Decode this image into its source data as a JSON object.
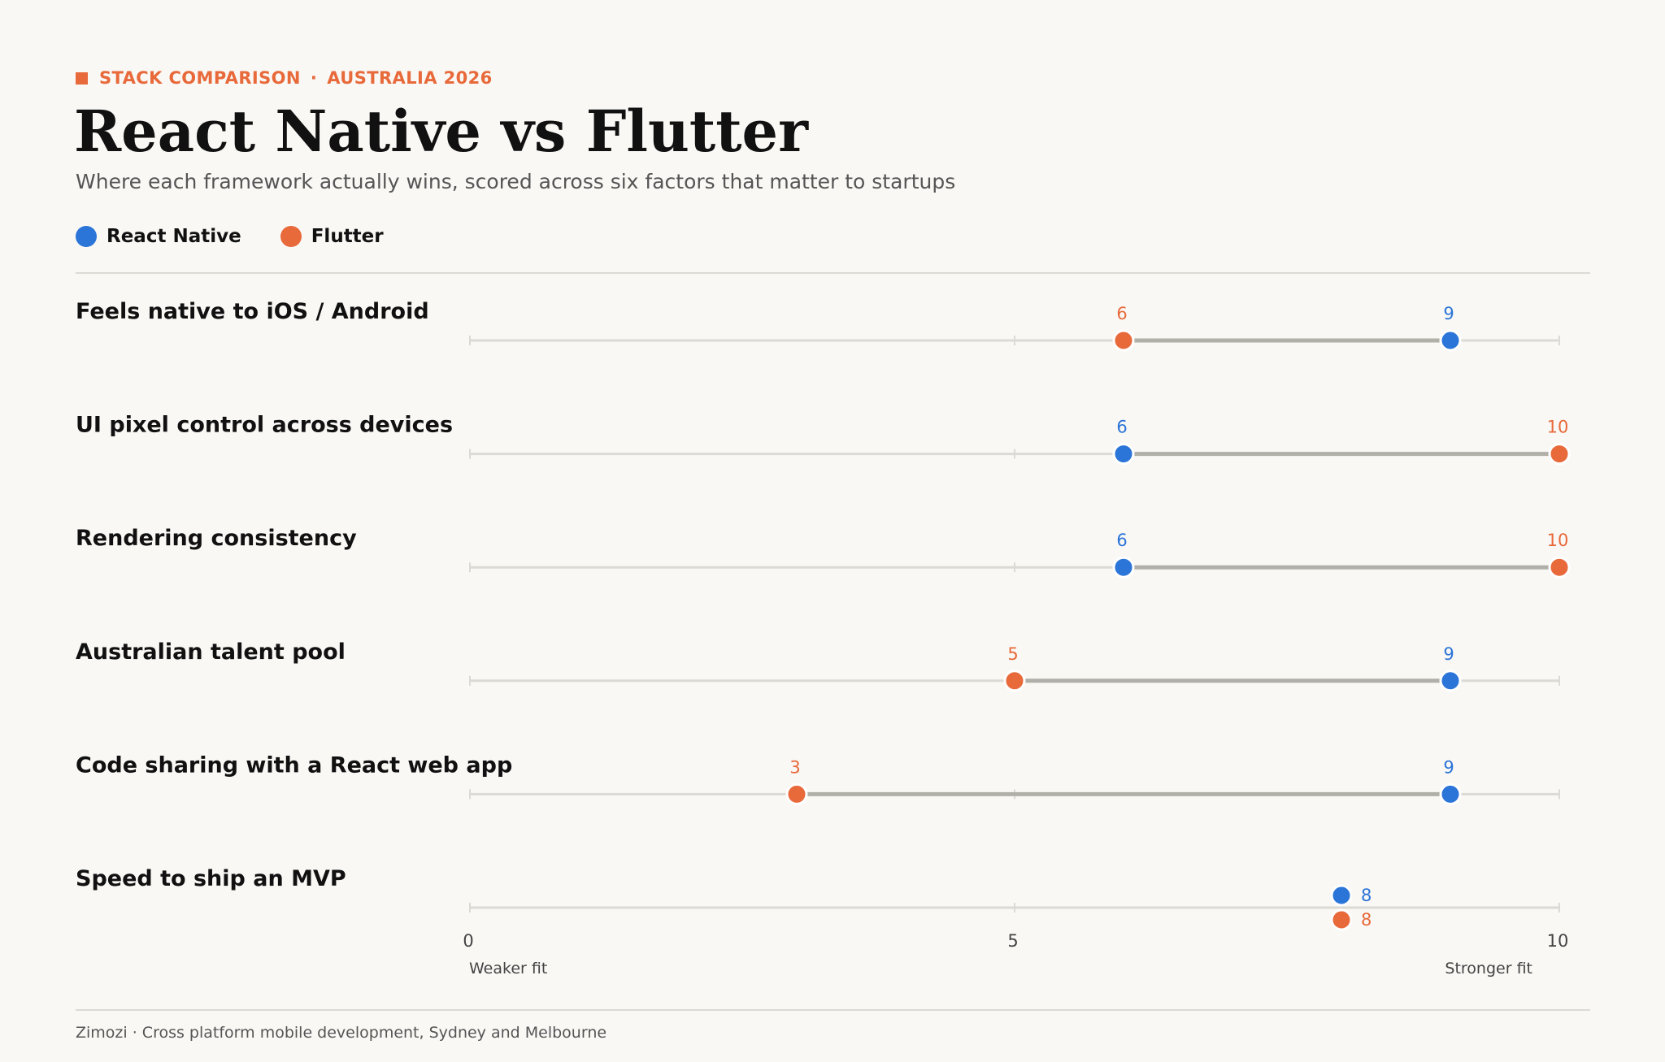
{
  "header": {
    "kicker_left": "STACK COMPARISON",
    "kicker_sep": "·",
    "kicker_right": "AUSTRALIA 2026",
    "title": "React Native vs Flutter",
    "subtitle": "Where each framework actually wins, scored across six factors that matter to startups"
  },
  "footer": {
    "text": "Zimozi · Cross platform mobile development, Sydney and Melbourne"
  },
  "colors": {
    "react_native": "#2b74d8",
    "flutter": "#e8693a",
    "connector": "#b0b0a8",
    "track": "#dcdad4"
  },
  "chart_data": {
    "type": "dumbbell",
    "xlim": [
      0,
      10
    ],
    "x_ticks": [
      0,
      5,
      10
    ],
    "axis_left_label": "Weaker fit",
    "axis_right_label": "Stronger fit",
    "legend_position": "top-left",
    "series": [
      {
        "name": "React Native",
        "color": "#2b74d8"
      },
      {
        "name": "Flutter",
        "color": "#e8693a"
      }
    ],
    "categories": [
      {
        "label": "Feels native to iOS / Android",
        "react_native": 9,
        "flutter": 6
      },
      {
        "label": "UI pixel control across devices",
        "react_native": 6,
        "flutter": 10
      },
      {
        "label": "Rendering consistency",
        "react_native": 6,
        "flutter": 10
      },
      {
        "label": "Australian talent pool",
        "react_native": 9,
        "flutter": 5
      },
      {
        "label": "Code sharing with a React web app",
        "react_native": 9,
        "flutter": 3
      },
      {
        "label": "Speed to ship an MVP",
        "react_native": 8,
        "flutter": 8
      }
    ]
  }
}
